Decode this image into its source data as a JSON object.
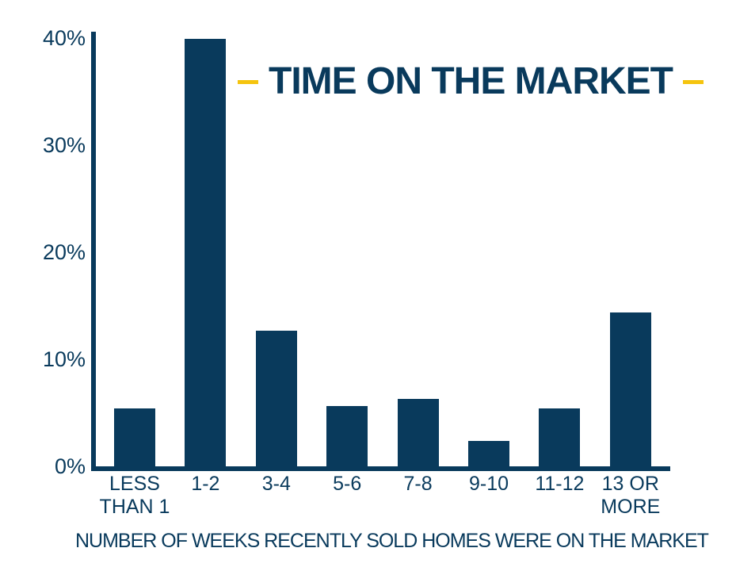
{
  "chart_data": {
    "type": "bar",
    "title": "TIME ON THE MARKET",
    "xlabel": "NUMBER OF WEEKS RECENTLY SOLD HOMES WERE ON THE MARKET",
    "ylabel": "",
    "categories": [
      "LESS THAN 1",
      "1-2",
      "3-4",
      "5-6",
      "7-8",
      "9-10",
      "11-12",
      "13 OR MORE"
    ],
    "category_lines": [
      [
        "LESS",
        "THAN 1"
      ],
      [
        "1-2"
      ],
      [
        "3-4"
      ],
      [
        "5-6"
      ],
      [
        "7-8"
      ],
      [
        "9-10"
      ],
      [
        "11-12"
      ],
      [
        "13 OR",
        "MORE"
      ]
    ],
    "values": [
      5.4,
      39.9,
      12.7,
      5.6,
      6.3,
      2.4,
      5.4,
      14.4
    ],
    "unit": "%",
    "ylim": [
      0,
      40
    ],
    "y_ticks": [
      "40%",
      "30%",
      "20%",
      "10%",
      "0%"
    ],
    "y_tick_values": [
      40,
      30,
      20,
      10,
      0
    ],
    "grid": false,
    "legend": "none",
    "colors": {
      "bar": "#093a5c",
      "axis": "#093a5c",
      "text": "#093a5c",
      "accent_dash": "#f5c40e",
      "background": "#ffffff"
    }
  }
}
